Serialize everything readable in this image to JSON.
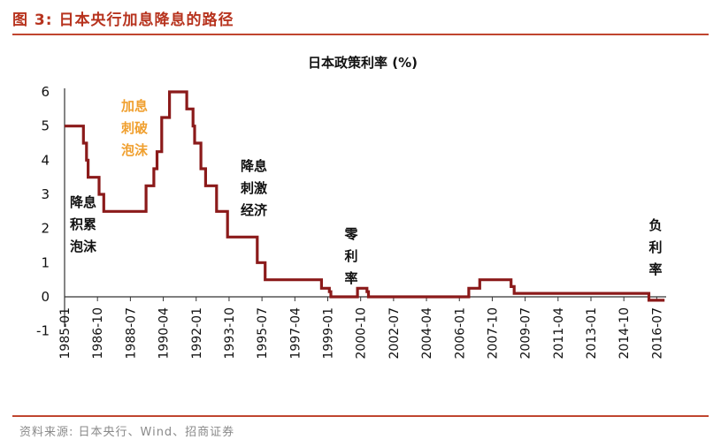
{
  "figure": {
    "title": "图 3:  日本央行加息降息的路径",
    "source": "资料来源:  日本央行、Wind、招商证券",
    "accent_color": "#c0452f"
  },
  "chart_data": {
    "type": "line",
    "title": "日本政策利率 (%)",
    "xlabel": "",
    "ylabel": "",
    "ylim": [
      -1,
      6
    ],
    "yticks": [
      "6",
      "5",
      "4",
      "3",
      "2",
      "1",
      "0",
      "-1"
    ],
    "xticks": [
      "1985-01",
      "1986-10",
      "1988-07",
      "1990-04",
      "1992-01",
      "1993-10",
      "1995-07",
      "1997-04",
      "1999-01",
      "2000-10",
      "2002-07",
      "2004-04",
      "2006-01",
      "2007-10",
      "2009-07",
      "2011-04",
      "2013-01",
      "2014-10",
      "2016-07"
    ],
    "grid": false,
    "line_color": "#8b1a1a",
    "series": [
      {
        "step": true,
        "points": [
          [
            "1985-01",
            5.0
          ],
          [
            "1986-01",
            4.5
          ],
          [
            "1986-03",
            4.0
          ],
          [
            "1986-04",
            3.5
          ],
          [
            "1986-11",
            3.0
          ],
          [
            "1987-02",
            2.5
          ],
          [
            "1989-05",
            3.25
          ],
          [
            "1989-10",
            3.75
          ],
          [
            "1989-12",
            4.25
          ],
          [
            "1990-03",
            5.25
          ],
          [
            "1990-08",
            6.0
          ],
          [
            "1991-07",
            5.5
          ],
          [
            "1991-11",
            5.0
          ],
          [
            "1991-12",
            4.5
          ],
          [
            "1992-04",
            3.75
          ],
          [
            "1992-07",
            3.25
          ],
          [
            "1993-02",
            2.5
          ],
          [
            "1993-09",
            1.75
          ],
          [
            "1995-04",
            1.0
          ],
          [
            "1995-09",
            0.5
          ],
          [
            "1998-09",
            0.25
          ],
          [
            "1999-02",
            0.15
          ],
          [
            "1999-03",
            0.0
          ],
          [
            "2000-08",
            0.25
          ],
          [
            "2001-02",
            0.15
          ],
          [
            "2001-03",
            0.0
          ],
          [
            "2006-07",
            0.25
          ],
          [
            "2007-02",
            0.5
          ],
          [
            "2008-10",
            0.3
          ],
          [
            "2008-12",
            0.1
          ],
          [
            "2016-02",
            -0.1
          ],
          [
            "2016-12",
            -0.1
          ]
        ]
      }
    ],
    "annotations": [
      {
        "lines": [
          "加息",
          "刺破",
          "泡沫"
        ],
        "color": "#f0a030"
      },
      {
        "lines": [
          "降息",
          "积累",
          "泡沫"
        ],
        "color": "#111111"
      },
      {
        "lines": [
          "降息",
          "刺激",
          "经济"
        ],
        "color": "#111111"
      },
      {
        "lines": [
          "零",
          "利",
          "率"
        ],
        "color": "#111111"
      },
      {
        "lines": [
          "负",
          "利",
          "率"
        ],
        "color": "#111111"
      }
    ]
  }
}
